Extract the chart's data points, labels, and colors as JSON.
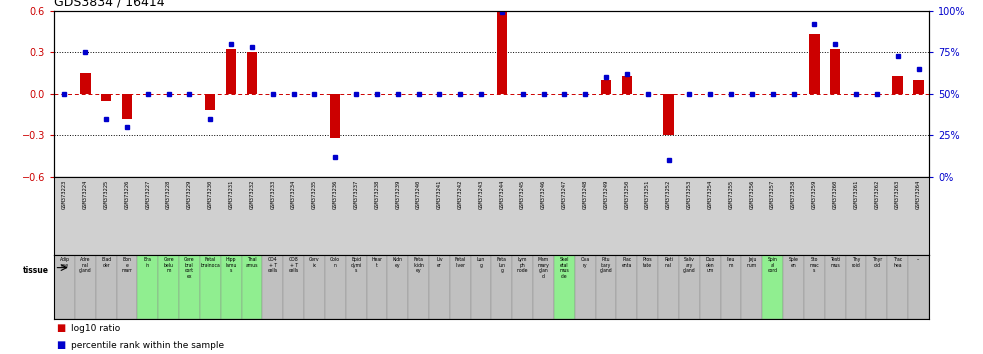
{
  "title": "GDS3834 / 16414",
  "gsm_ids": [
    "GSM373223",
    "GSM373224",
    "GSM373225",
    "GSM373226",
    "GSM373227",
    "GSM373228",
    "GSM373229",
    "GSM373230",
    "GSM373231",
    "GSM373232",
    "GSM373233",
    "GSM373234",
    "GSM373235",
    "GSM373236",
    "GSM373237",
    "GSM373238",
    "GSM373239",
    "GSM373240",
    "GSM373241",
    "GSM373242",
    "GSM373243",
    "GSM373244",
    "GSM373245",
    "GSM373246",
    "GSM373247",
    "GSM373248",
    "GSM373249",
    "GSM373250",
    "GSM373251",
    "GSM373252",
    "GSM373253",
    "GSM373254",
    "GSM373255",
    "GSM373256",
    "GSM373257",
    "GSM373258",
    "GSM373259",
    "GSM373260",
    "GSM373261",
    "GSM373262",
    "GSM373263",
    "GSM373264"
  ],
  "tissue_labels": [
    "Adip\nose",
    "Adre\nnal\ngland",
    "Blad\nder",
    "Bon\ne\nmarr",
    "Bra\nin",
    "Cere\nbelu\nm",
    "Cere\nbral\ncort\nex",
    "Fetal\nbrainoca",
    "Hipp\nlamu\ns",
    "Thal\namus",
    "CD4\n+ T\ncells",
    "CD8\n+ T\ncells",
    "Cerv\nix",
    "Colo\nn",
    "Epid\ndymi\ns",
    "Hear\nt",
    "Kidn\ney",
    "Feta\nlkidn\ney",
    "Liv\ner",
    "Fetal\nliver",
    "Lun\ng",
    "Feta\nlun\ng",
    "Lym\nph\nnode",
    "Mam\nmary\nglan\nd",
    "Skel\netal\nmus\ncle",
    "Ova\nry",
    "Pitu\nitary\ngland",
    "Plac\nenta",
    "Pros\ntate",
    "Reti\nnal",
    "Saliv\nary\ngland",
    "Duo\nden\num",
    "Ileu\nm",
    "Jeju\nnum",
    "Spin\nal\ncord",
    "Sple\nen",
    "Sto\nmac\ns",
    "Testi\nmus",
    "Thy\nroid",
    "Thyr\noid",
    "Trac\nhea",
    "--"
  ],
  "tissue_colors": [
    "#c0c0c0",
    "#c0c0c0",
    "#c0c0c0",
    "#c0c0c0",
    "#90ee90",
    "#90ee90",
    "#90ee90",
    "#90ee90",
    "#90ee90",
    "#90ee90",
    "#c0c0c0",
    "#c0c0c0",
    "#c0c0c0",
    "#c0c0c0",
    "#c0c0c0",
    "#c0c0c0",
    "#c0c0c0",
    "#c0c0c0",
    "#c0c0c0",
    "#c0c0c0",
    "#c0c0c0",
    "#c0c0c0",
    "#c0c0c0",
    "#c0c0c0",
    "#90ee90",
    "#c0c0c0",
    "#c0c0c0",
    "#c0c0c0",
    "#c0c0c0",
    "#c0c0c0",
    "#c0c0c0",
    "#c0c0c0",
    "#c0c0c0",
    "#c0c0c0",
    "#90ee90",
    "#c0c0c0",
    "#c0c0c0",
    "#c0c0c0",
    "#c0c0c0",
    "#c0c0c0",
    "#c0c0c0",
    "#c0c0c0"
  ],
  "log10_ratio": [
    0.0,
    0.15,
    -0.05,
    -0.18,
    0.0,
    0.0,
    0.0,
    -0.12,
    0.32,
    0.3,
    0.0,
    0.0,
    0.0,
    -0.32,
    0.0,
    0.0,
    0.0,
    0.0,
    0.0,
    0.0,
    0.0,
    0.59,
    0.0,
    0.0,
    0.0,
    0.0,
    0.1,
    0.13,
    0.0,
    -0.3,
    0.0,
    0.0,
    0.0,
    0.0,
    0.0,
    0.0,
    0.43,
    0.32,
    0.0,
    0.0,
    0.13,
    0.1
  ],
  "percentile_rank": [
    50,
    75,
    35,
    30,
    50,
    50,
    50,
    35,
    80,
    78,
    50,
    50,
    50,
    12,
    50,
    50,
    50,
    50,
    50,
    50,
    50,
    99,
    50,
    50,
    50,
    50,
    60,
    62,
    50,
    10,
    50,
    50,
    50,
    50,
    50,
    50,
    92,
    80,
    50,
    50,
    73,
    65
  ],
  "ylim_left": [
    -0.6,
    0.6
  ],
  "ylim_right": [
    0,
    100
  ],
  "left_ticks": [
    -0.6,
    -0.3,
    0.0,
    0.3,
    0.6
  ],
  "right_ticks": [
    0,
    25,
    50,
    75,
    100
  ],
  "right_tick_labels": [
    "0%",
    "25%",
    "50%",
    "75%",
    "100%"
  ],
  "bar_color": "#cc0000",
  "dot_color": "#0000cc",
  "bg_color": "#ffffff",
  "gsm_row_color": "#d0d0d0",
  "left_tick_color": "#cc0000",
  "right_tick_color": "#0000cc",
  "title_fontsize": 9
}
